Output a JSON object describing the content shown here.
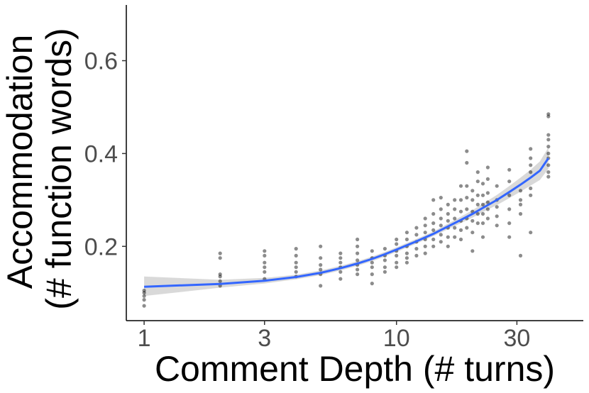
{
  "chart_data": {
    "type": "scatter",
    "xlabel": "Comment Depth (# turns)",
    "ylabel_line1": "Accommodation",
    "ylabel_line2": "(# function words)",
    "xscale": "log10",
    "xlim": [
      0.85,
      55
    ],
    "ylim": [
      0.04,
      0.72
    ],
    "x_ticks": [
      1,
      3,
      10,
      30
    ],
    "x_tick_labels": [
      "1",
      "3",
      "10",
      "30"
    ],
    "y_ticks": [
      0.2,
      0.4,
      0.6
    ],
    "y_tick_labels": [
      "0.2",
      "0.4",
      "0.6"
    ],
    "grid": false,
    "legend": "none",
    "points": [
      [
        1,
        0.072
      ],
      [
        1,
        0.085
      ],
      [
        1,
        0.093
      ],
      [
        1,
        0.1
      ],
      [
        1,
        0.105
      ],
      [
        2,
        0.115
      ],
      [
        2,
        0.125
      ],
      [
        2,
        0.135
      ],
      [
        2,
        0.14
      ],
      [
        2,
        0.175
      ],
      [
        2,
        0.185
      ],
      [
        3,
        0.13
      ],
      [
        3,
        0.145
      ],
      [
        3,
        0.155
      ],
      [
        3,
        0.165
      ],
      [
        3,
        0.18
      ],
      [
        3,
        0.19
      ],
      [
        4,
        0.135
      ],
      [
        4,
        0.145
      ],
      [
        4,
        0.155
      ],
      [
        4,
        0.165
      ],
      [
        4,
        0.18
      ],
      [
        4,
        0.195
      ],
      [
        5,
        0.115
      ],
      [
        5,
        0.14
      ],
      [
        5,
        0.15
      ],
      [
        5,
        0.16
      ],
      [
        5,
        0.175
      ],
      [
        5,
        0.2
      ],
      [
        6,
        0.13
      ],
      [
        6,
        0.145
      ],
      [
        6,
        0.155
      ],
      [
        6,
        0.165
      ],
      [
        6,
        0.175
      ],
      [
        6,
        0.185
      ],
      [
        7,
        0.14
      ],
      [
        7,
        0.15
      ],
      [
        7,
        0.16
      ],
      [
        7,
        0.17
      ],
      [
        7,
        0.185
      ],
      [
        7,
        0.2
      ],
      [
        7,
        0.215
      ],
      [
        8,
        0.12
      ],
      [
        8,
        0.14
      ],
      [
        8,
        0.155
      ],
      [
        8,
        0.165
      ],
      [
        8,
        0.175
      ],
      [
        8,
        0.19
      ],
      [
        9,
        0.145
      ],
      [
        9,
        0.155
      ],
      [
        9,
        0.17
      ],
      [
        9,
        0.18
      ],
      [
        9,
        0.195
      ],
      [
        10,
        0.155
      ],
      [
        10,
        0.165
      ],
      [
        10,
        0.18
      ],
      [
        10,
        0.19
      ],
      [
        10,
        0.205
      ],
      [
        10,
        0.215
      ],
      [
        11,
        0.165
      ],
      [
        11,
        0.175
      ],
      [
        11,
        0.185
      ],
      [
        11,
        0.2
      ],
      [
        11,
        0.215
      ],
      [
        11,
        0.23
      ],
      [
        12,
        0.18
      ],
      [
        12,
        0.195
      ],
      [
        12,
        0.21
      ],
      [
        12,
        0.225
      ],
      [
        12,
        0.24
      ],
      [
        13,
        0.185
      ],
      [
        13,
        0.2
      ],
      [
        13,
        0.215
      ],
      [
        13,
        0.23
      ],
      [
        13,
        0.245
      ],
      [
        13,
        0.26
      ],
      [
        14,
        0.2
      ],
      [
        14,
        0.215
      ],
      [
        14,
        0.235
      ],
      [
        14,
        0.25
      ],
      [
        14,
        0.27
      ],
      [
        14,
        0.3
      ],
      [
        15,
        0.21
      ],
      [
        15,
        0.225
      ],
      [
        15,
        0.245
      ],
      [
        15,
        0.26
      ],
      [
        15,
        0.28
      ],
      [
        15,
        0.305
      ],
      [
        16,
        0.2
      ],
      [
        16,
        0.22
      ],
      [
        16,
        0.24
      ],
      [
        16,
        0.255
      ],
      [
        16,
        0.27
      ],
      [
        16,
        0.29
      ],
      [
        17,
        0.22
      ],
      [
        17,
        0.24
      ],
      [
        17,
        0.26
      ],
      [
        17,
        0.28
      ],
      [
        17,
        0.3
      ],
      [
        18,
        0.215
      ],
      [
        18,
        0.235
      ],
      [
        18,
        0.255
      ],
      [
        18,
        0.275
      ],
      [
        18,
        0.3
      ],
      [
        18,
        0.33
      ],
      [
        19,
        0.24
      ],
      [
        19,
        0.26
      ],
      [
        19,
        0.28
      ],
      [
        19,
        0.305
      ],
      [
        19,
        0.33
      ],
      [
        19,
        0.38
      ],
      [
        19,
        0.405
      ],
      [
        20,
        0.19
      ],
      [
        20,
        0.23
      ],
      [
        20,
        0.255
      ],
      [
        20,
        0.275
      ],
      [
        20,
        0.3
      ],
      [
        20,
        0.32
      ],
      [
        21,
        0.25
      ],
      [
        21,
        0.27
      ],
      [
        21,
        0.29
      ],
      [
        21,
        0.31
      ],
      [
        21,
        0.34
      ],
      [
        21,
        0.36
      ],
      [
        22,
        0.22
      ],
      [
        22,
        0.25
      ],
      [
        22,
        0.27
      ],
      [
        22,
        0.29
      ],
      [
        22,
        0.31
      ],
      [
        22,
        0.335
      ],
      [
        23,
        0.26
      ],
      [
        23,
        0.28
      ],
      [
        23,
        0.295
      ],
      [
        23,
        0.315
      ],
      [
        23,
        0.345
      ],
      [
        23,
        0.37
      ],
      [
        25,
        0.245
      ],
      [
        25,
        0.265
      ],
      [
        25,
        0.285
      ],
      [
        25,
        0.3
      ],
      [
        25,
        0.33
      ],
      [
        28,
        0.22
      ],
      [
        28,
        0.25
      ],
      [
        28,
        0.28
      ],
      [
        28,
        0.31
      ],
      [
        28,
        0.34
      ],
      [
        28,
        0.365
      ],
      [
        31,
        0.18
      ],
      [
        31,
        0.27
      ],
      [
        31,
        0.29
      ],
      [
        31,
        0.3
      ],
      [
        31,
        0.32
      ],
      [
        34,
        0.23
      ],
      [
        34,
        0.31
      ],
      [
        34,
        0.325
      ],
      [
        34,
        0.36
      ],
      [
        34,
        0.375
      ],
      [
        34,
        0.39
      ],
      [
        34,
        0.41
      ],
      [
        40,
        0.35
      ],
      [
        40,
        0.36
      ],
      [
        40,
        0.375
      ],
      [
        40,
        0.39
      ],
      [
        40,
        0.4
      ],
      [
        40,
        0.415
      ],
      [
        40,
        0.43
      ],
      [
        40,
        0.44
      ],
      [
        40,
        0.48
      ],
      [
        40,
        0.485
      ]
    ],
    "fit_curve": {
      "method": "smooth",
      "x": [
        1,
        2,
        3,
        4,
        5,
        6,
        7,
        8,
        9,
        10,
        12,
        14,
        16,
        18,
        20,
        22,
        25,
        28,
        31,
        34,
        37,
        40
      ],
      "y": [
        0.113,
        0.119,
        0.126,
        0.134,
        0.143,
        0.153,
        0.163,
        0.173,
        0.183,
        0.193,
        0.211,
        0.227,
        0.243,
        0.257,
        0.27,
        0.283,
        0.3,
        0.317,
        0.333,
        0.348,
        0.363,
        0.39
      ],
      "ci_low": [
        0.093,
        0.111,
        0.12,
        0.129,
        0.138,
        0.148,
        0.158,
        0.168,
        0.178,
        0.188,
        0.206,
        0.222,
        0.237,
        0.25,
        0.262,
        0.274,
        0.289,
        0.304,
        0.318,
        0.331,
        0.343,
        0.367
      ],
      "ci_high": [
        0.135,
        0.128,
        0.132,
        0.139,
        0.148,
        0.158,
        0.168,
        0.178,
        0.188,
        0.198,
        0.216,
        0.232,
        0.249,
        0.264,
        0.278,
        0.292,
        0.311,
        0.33,
        0.348,
        0.365,
        0.383,
        0.413
      ]
    },
    "colors": {
      "points": "#000000",
      "fit_line": "#3366ff",
      "ci_band": "#bfbfbf",
      "tick_labels": "#4d4d4d",
      "axis": "#000000"
    }
  }
}
